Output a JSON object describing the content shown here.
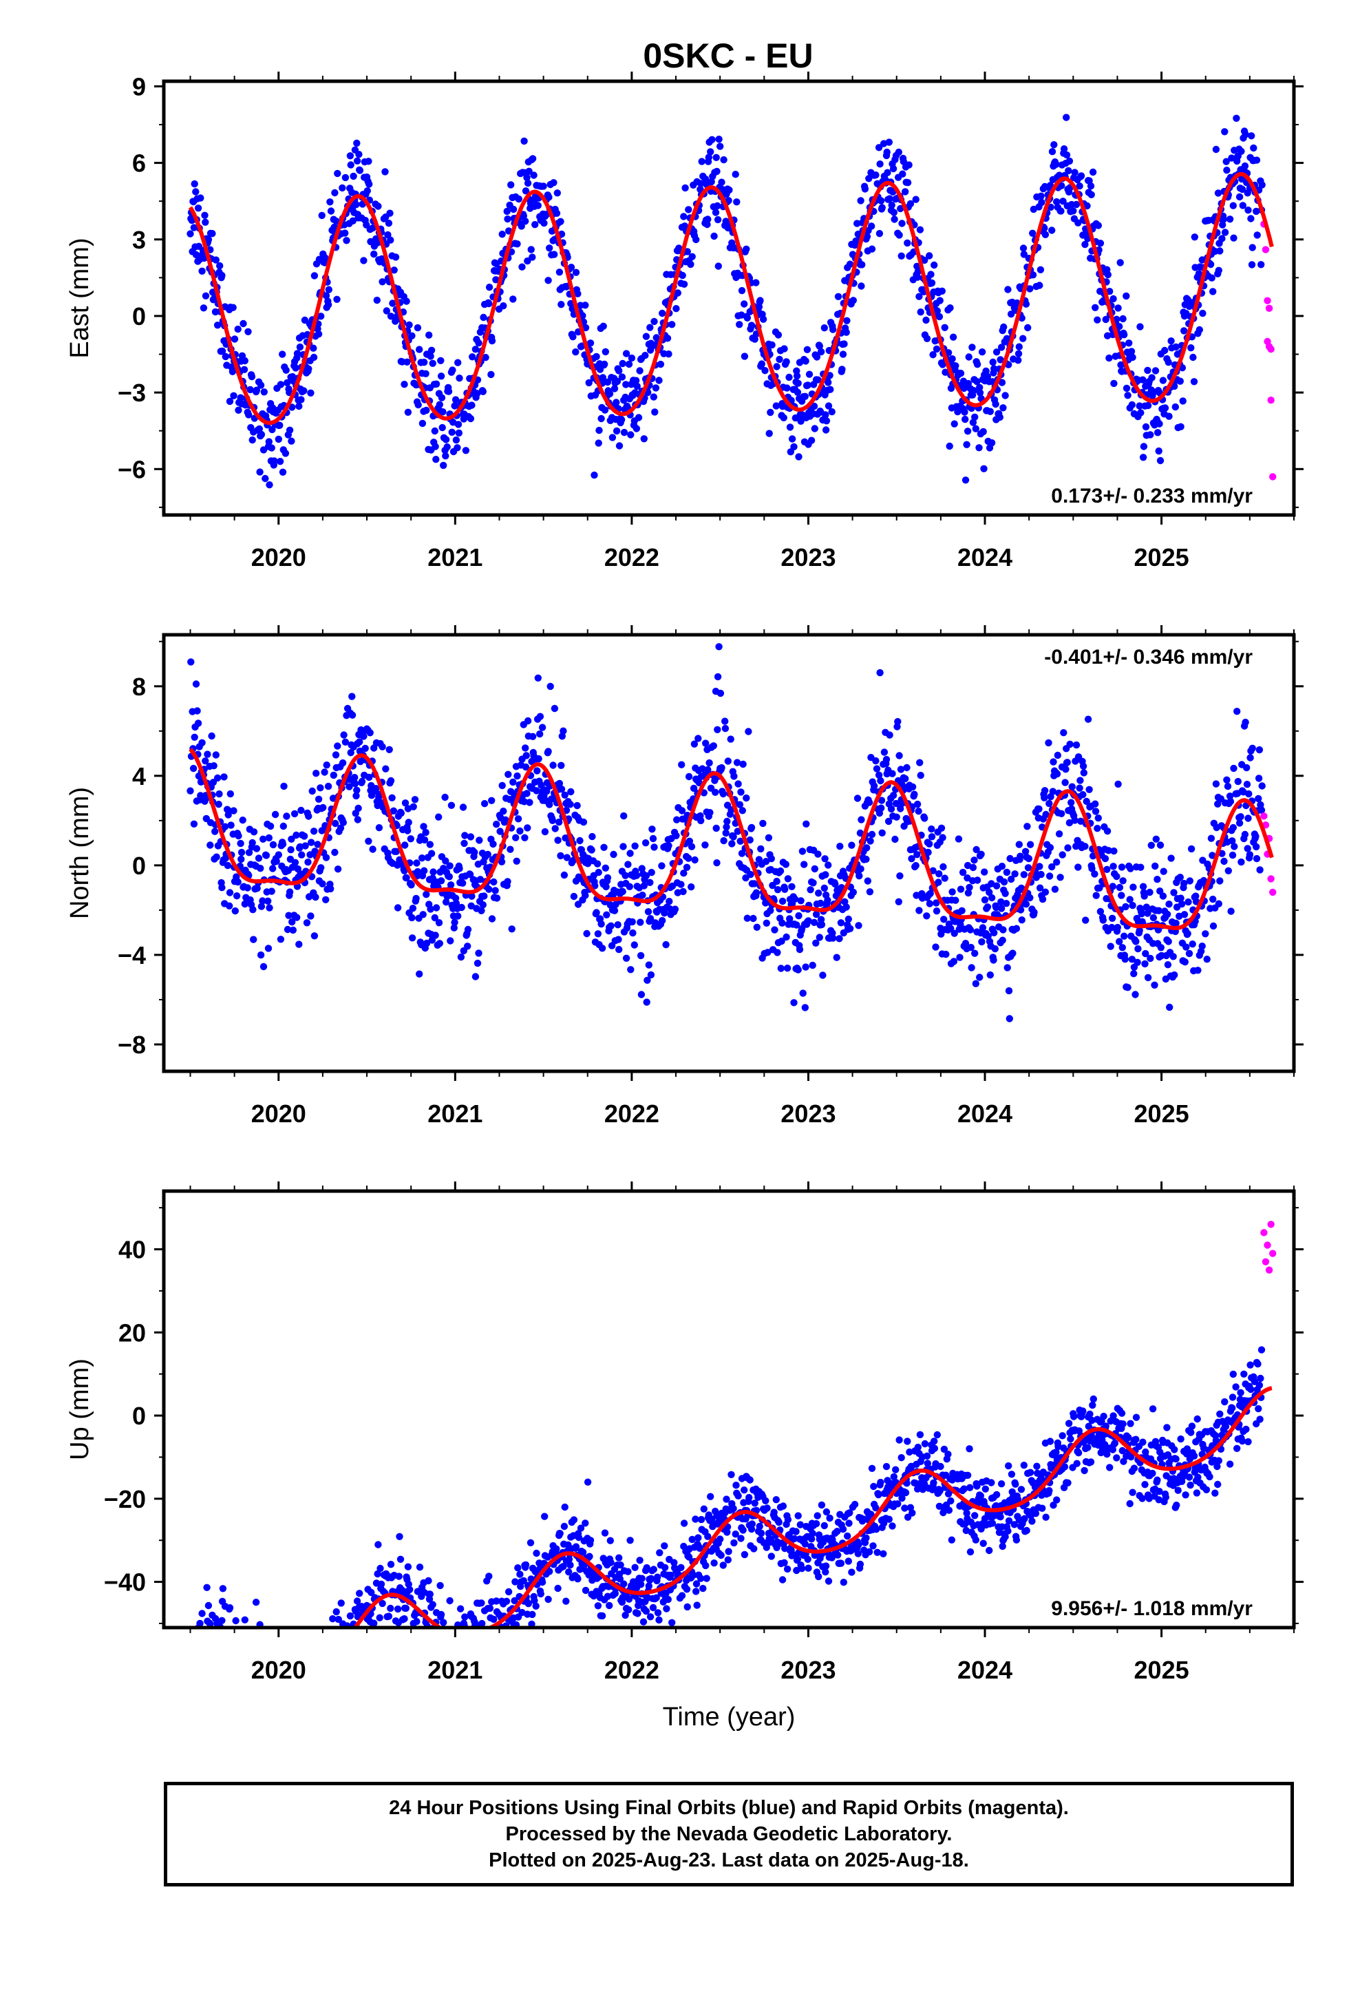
{
  "page_title": "0SKC - EU",
  "caption": {
    "lines": [
      "24 Hour Positions Using Final Orbits (blue) and Rapid Orbits (magenta).",
      "Processed by the Nevada Geodetic Laboratory.",
      "Plotted on 2025-Aug-23. Last data on 2025-Aug-18."
    ]
  },
  "colors": {
    "final_orbits": "#0000ff",
    "rapid_orbits": "#ff00ff",
    "model_fit": "#ff0000",
    "axes": "#000000"
  },
  "chart_data": [
    {
      "type": "scatter",
      "title": "0SKC - EU",
      "ylabel": "East (mm)",
      "xlabel": "",
      "xlim": [
        2019.35,
        2025.75
      ],
      "ylim": [
        -7.8,
        9.2
      ],
      "y_ticks": [
        9,
        6,
        3,
        0,
        -3,
        -6
      ],
      "y_tick_labels": [
        "9",
        "6",
        "3",
        "0",
        "−3",
        "−6"
      ],
      "x_tick_labels": [
        "2020",
        "2021",
        "2022",
        "2023",
        "2024",
        "2025"
      ],
      "rate_label": "0.173+/- 0.233 mm/yr",
      "rate_position": "bottom-right",
      "fit_model": {
        "trend_mm_per_yr": 0.173,
        "offset_mm": 0.35,
        "annual_amplitude_mm": 4.4,
        "annual_peak_fraction": 0.45,
        "semiannual_amplitude_mm": 0.3
      },
      "scatter_spread_mm": 1.0,
      "series": [
        {
          "name": "Final Orbits",
          "color": "#0000ff",
          "x_range": [
            2019.5,
            2025.57
          ]
        },
        {
          "name": "Rapid Orbits",
          "color": "#ff00ff",
          "x": [
            2025.58,
            2025.59,
            2025.6,
            2025.6,
            2025.61,
            2025.61,
            2025.62,
            2025.62,
            2025.63
          ],
          "y": [
            3.6,
            2.6,
            0.6,
            -1.0,
            -1.2,
            0.3,
            -3.3,
            -1.3,
            -6.3
          ]
        }
      ]
    },
    {
      "type": "scatter",
      "ylabel": "North (mm)",
      "xlabel": "",
      "xlim": [
        2019.35,
        2025.75
      ],
      "ylim": [
        -9.2,
        10.3
      ],
      "y_ticks": [
        8,
        4,
        0,
        -4,
        -8
      ],
      "y_tick_labels": [
        "8",
        "4",
        "0",
        "−4",
        "−8"
      ],
      "x_tick_labels": [
        "2020",
        "2021",
        "2022",
        "2023",
        "2024",
        "2025"
      ],
      "rate_label": "-0.401+/- 0.346 mm/yr",
      "rate_position": "top-right",
      "fit_model": {
        "trend_mm_per_yr": -0.401,
        "offset_mm": 0.3,
        "annual_amplitude_mm": 2.9,
        "annual_peak_fraction": 0.47,
        "semiannual_amplitude_mm": 0.9
      },
      "scatter_spread_mm": 1.5,
      "series": [
        {
          "name": "Final Orbits",
          "color": "#0000ff",
          "x_range": [
            2019.5,
            2025.57
          ]
        },
        {
          "name": "Rapid Orbits",
          "color": "#ff00ff",
          "x": [
            2025.58,
            2025.59,
            2025.6,
            2025.61,
            2025.62,
            2025.63
          ],
          "y": [
            2.2,
            1.8,
            0.5,
            1.2,
            -0.6,
            -1.2
          ]
        }
      ]
    },
    {
      "type": "scatter",
      "ylabel": "Up (mm)",
      "xlabel": "Time (year)",
      "xlim": [
        2019.35,
        2025.75
      ],
      "ylim": [
        -51,
        54
      ],
      "y_ticks": [
        40,
        20,
        0,
        -20,
        -40
      ],
      "y_tick_labels": [
        "40",
        "20",
        "0",
        "−20",
        "−40"
      ],
      "x_tick_labels": [
        "2020",
        "2021",
        "2022",
        "2023",
        "2024",
        "2025"
      ],
      "rate_label": "9.956+/- 1.018 mm/yr",
      "rate_position": "bottom-right",
      "fit_model": {
        "trend_mm_per_yr": 9.956,
        "offset_mm": -32.5,
        "annual_amplitude_mm": 7.0,
        "annual_peak_fraction": 0.62,
        "semiannual_amplitude_mm": 1.0
      },
      "scatter_spread_mm": 4.5,
      "series": [
        {
          "name": "Final Orbits",
          "color": "#0000ff",
          "x_range": [
            2019.5,
            2025.57
          ]
        },
        {
          "name": "Rapid Orbits",
          "color": "#ff00ff",
          "x": [
            2025.58,
            2025.59,
            2025.6,
            2025.61,
            2025.62,
            2025.63
          ],
          "y": [
            44,
            37,
            41,
            35,
            46,
            39
          ]
        }
      ]
    }
  ]
}
